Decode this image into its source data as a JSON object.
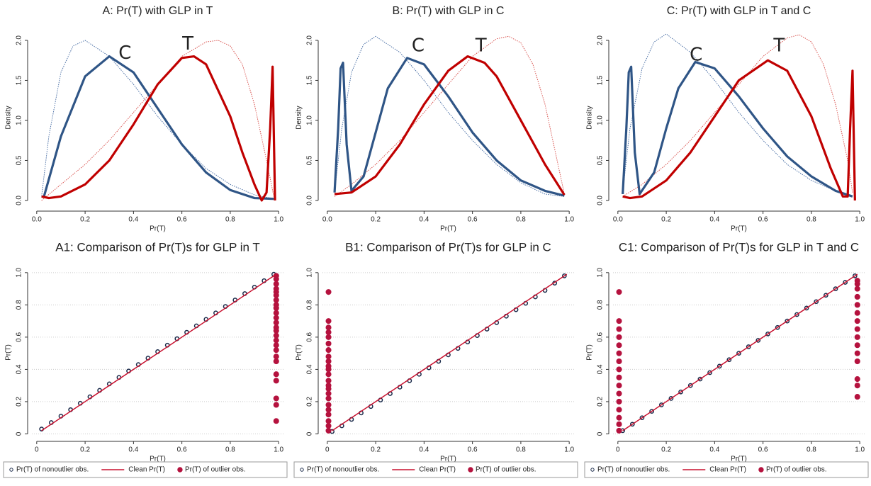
{
  "chart_data": [
    {
      "type": "line",
      "title": "A: Pr(T) with GLP in T",
      "x_label": "Pr(T)",
      "y_label": "Density",
      "xlim": [
        -0.02,
        1.02
      ],
      "ylim": [
        -0.08,
        2.15
      ],
      "xticks": [
        {
          "value": 0,
          "label": "0.0"
        },
        0.2,
        0.4,
        0.6,
        0.8,
        {
          "value": 1,
          "label": "1.0"
        }
      ],
      "yticks": [
        {
          "value": 0,
          "label": "0.0"
        },
        0.5,
        {
          "value": 1,
          "label": "1.0"
        },
        1.5,
        {
          "value": 2,
          "label": "2.0"
        }
      ],
      "annotations": [
        "C",
        "T"
      ],
      "series": [
        {
          "color": "#4a6fa5",
          "dash": true,
          "x": [
            0.02,
            0.05,
            0.1,
            0.15,
            0.2,
            0.3,
            0.4,
            0.5,
            0.6,
            0.7,
            0.8,
            0.9,
            0.98
          ],
          "values": [
            0.05,
            0.8,
            1.6,
            1.93,
            2.0,
            1.8,
            1.45,
            1.05,
            0.7,
            0.4,
            0.2,
            0.07,
            0.02
          ]
        },
        {
          "color": "#d9534f",
          "dash": true,
          "x": [
            0.02,
            0.1,
            0.2,
            0.3,
            0.4,
            0.5,
            0.6,
            0.7,
            0.75,
            0.8,
            0.85,
            0.9,
            0.95,
            0.98
          ],
          "values": [
            0.0,
            0.2,
            0.45,
            0.75,
            1.1,
            1.45,
            1.8,
            1.98,
            2.0,
            1.93,
            1.7,
            1.2,
            0.5,
            0.05
          ]
        },
        {
          "color": "#2f5586",
          "dash": false,
          "x": [
            0.03,
            0.1,
            0.2,
            0.3,
            0.4,
            0.5,
            0.6,
            0.7,
            0.8,
            0.9,
            0.98
          ],
          "values": [
            0.05,
            0.8,
            1.55,
            1.8,
            1.6,
            1.15,
            0.7,
            0.35,
            0.13,
            0.03,
            0.02
          ]
        },
        {
          "color": "#c00000",
          "dash": false,
          "x": [
            0.02,
            0.05,
            0.1,
            0.2,
            0.3,
            0.4,
            0.5,
            0.6,
            0.65,
            0.7,
            0.8,
            0.85,
            0.9,
            0.93,
            0.95,
            0.965,
            0.975,
            0.985
          ],
          "values": [
            0.05,
            0.03,
            0.05,
            0.2,
            0.5,
            0.95,
            1.45,
            1.78,
            1.8,
            1.7,
            1.05,
            0.6,
            0.2,
            0.0,
            0.1,
            0.9,
            1.67,
            0.0
          ]
        }
      ]
    },
    {
      "type": "line",
      "title": "B: Pr(T) with GLP in C",
      "x_label": "Pr(T)",
      "y_label": "Density",
      "xlim": [
        -0.02,
        1.02
      ],
      "ylim": [
        -0.08,
        2.15
      ],
      "xticks": [
        {
          "value": 0,
          "label": "0.0"
        },
        0.2,
        0.4,
        0.6,
        0.8,
        {
          "value": 1,
          "label": "1.0"
        }
      ],
      "yticks": [
        {
          "value": 0,
          "label": "0.0"
        },
        0.5,
        {
          "value": 1,
          "label": "1.0"
        },
        1.5,
        {
          "value": 2,
          "label": "2.0"
        }
      ],
      "annotations": [
        "C",
        "T"
      ],
      "series": [
        {
          "color": "#4a6fa5",
          "dash": true,
          "x": [
            0.03,
            0.06,
            0.1,
            0.15,
            0.2,
            0.3,
            0.4,
            0.5,
            0.6,
            0.7,
            0.8,
            0.9,
            0.98
          ],
          "values": [
            0.1,
            0.9,
            1.6,
            1.95,
            2.05,
            1.85,
            1.5,
            1.1,
            0.75,
            0.45,
            0.22,
            0.08,
            0.05
          ]
        },
        {
          "color": "#d9534f",
          "dash": true,
          "x": [
            0.03,
            0.1,
            0.2,
            0.3,
            0.4,
            0.5,
            0.6,
            0.7,
            0.75,
            0.8,
            0.85,
            0.9,
            0.95,
            0.98
          ],
          "values": [
            0.05,
            0.2,
            0.45,
            0.75,
            1.1,
            1.45,
            1.8,
            2.02,
            2.05,
            1.97,
            1.7,
            1.2,
            0.5,
            0.08
          ]
        },
        {
          "color": "#2f5586",
          "dash": false,
          "x": [
            0.03,
            0.045,
            0.055,
            0.065,
            0.08,
            0.1,
            0.15,
            0.2,
            0.25,
            0.33,
            0.4,
            0.5,
            0.6,
            0.7,
            0.8,
            0.9,
            0.98
          ],
          "values": [
            0.1,
            0.9,
            1.65,
            1.72,
            0.7,
            0.12,
            0.3,
            0.85,
            1.4,
            1.78,
            1.7,
            1.3,
            0.85,
            0.5,
            0.25,
            0.12,
            0.06
          ]
        },
        {
          "color": "#c00000",
          "dash": false,
          "x": [
            0.03,
            0.1,
            0.2,
            0.3,
            0.4,
            0.5,
            0.58,
            0.65,
            0.7,
            0.8,
            0.9,
            0.98
          ],
          "values": [
            0.08,
            0.1,
            0.3,
            0.7,
            1.2,
            1.62,
            1.8,
            1.72,
            1.55,
            1.0,
            0.45,
            0.07
          ]
        }
      ]
    },
    {
      "type": "line",
      "title": "C: Pr(T) with GLP in T and C",
      "x_label": "Pr(T)",
      "y_label": "Density",
      "xlim": [
        -0.02,
        1.02
      ],
      "ylim": [
        -0.08,
        2.15
      ],
      "xticks": [
        {
          "value": 0,
          "label": "0.0"
        },
        0.2,
        0.4,
        0.6,
        0.8,
        {
          "value": 1,
          "label": "1.0"
        }
      ],
      "yticks": [
        {
          "value": 0,
          "label": "0.0"
        },
        0.5,
        {
          "value": 1,
          "label": "1.0"
        },
        1.5,
        {
          "value": 2,
          "label": "2.0"
        }
      ],
      "annotations": [
        "C",
        "T"
      ],
      "series": [
        {
          "color": "#4a6fa5",
          "dash": true,
          "x": [
            0.02,
            0.05,
            0.1,
            0.15,
            0.2,
            0.3,
            0.4,
            0.5,
            0.6,
            0.7,
            0.8,
            0.9,
            0.97
          ],
          "values": [
            0.1,
            0.9,
            1.65,
            1.98,
            2.08,
            1.85,
            1.5,
            1.1,
            0.75,
            0.45,
            0.25,
            0.12,
            0.06
          ]
        },
        {
          "color": "#d9534f",
          "dash": true,
          "x": [
            0.02,
            0.1,
            0.2,
            0.3,
            0.4,
            0.5,
            0.6,
            0.7,
            0.75,
            0.8,
            0.85,
            0.9,
            0.95,
            0.97
          ],
          "values": [
            0.05,
            0.2,
            0.45,
            0.75,
            1.1,
            1.45,
            1.8,
            2.03,
            2.07,
            1.98,
            1.7,
            1.2,
            0.5,
            0.1
          ]
        },
        {
          "color": "#2f5586",
          "dash": false,
          "x": [
            0.02,
            0.035,
            0.045,
            0.055,
            0.07,
            0.09,
            0.15,
            0.2,
            0.25,
            0.32,
            0.4,
            0.5,
            0.6,
            0.7,
            0.8,
            0.9,
            0.97
          ],
          "values": [
            0.08,
            0.9,
            1.6,
            1.67,
            0.6,
            0.08,
            0.35,
            0.9,
            1.4,
            1.73,
            1.65,
            1.3,
            0.9,
            0.55,
            0.3,
            0.12,
            0.05
          ]
        },
        {
          "color": "#c00000",
          "dash": false,
          "x": [
            0.02,
            0.05,
            0.1,
            0.2,
            0.3,
            0.4,
            0.5,
            0.62,
            0.7,
            0.8,
            0.88,
            0.93,
            0.95,
            0.96,
            0.97,
            0.98
          ],
          "values": [
            0.05,
            0.03,
            0.05,
            0.25,
            0.6,
            1.05,
            1.5,
            1.75,
            1.62,
            1.05,
            0.4,
            0.05,
            0.05,
            0.9,
            1.62,
            0.0
          ]
        }
      ]
    },
    {
      "type": "scatter",
      "title": "A1: Comparison of Pr(T)s for GLP in T",
      "x_label": "Pr(T)",
      "y_label": "Pr(T)",
      "xlim": [
        -0.02,
        1.02
      ],
      "ylim": [
        -0.02,
        1.03
      ],
      "grid": true,
      "xticks": [
        0,
        0.2,
        0.4,
        0.6,
        0.8,
        {
          "value": 1,
          "label": "1.0"
        }
      ],
      "yticks": [
        0,
        0.2,
        0.4,
        0.6,
        0.8,
        {
          "value": 1,
          "label": "1.0"
        }
      ],
      "series": [
        {
          "name": "Pr(T) of nonoutlier obs.",
          "color": "#1a2a4a",
          "marker": "hollow",
          "x": [
            0.02,
            0.06,
            0.1,
            0.14,
            0.18,
            0.22,
            0.26,
            0.3,
            0.34,
            0.38,
            0.42,
            0.46,
            0.5,
            0.54,
            0.58,
            0.62,
            0.66,
            0.7,
            0.74,
            0.78,
            0.82,
            0.86,
            0.9,
            0.94,
            0.98
          ],
          "values": [
            0.03,
            0.07,
            0.11,
            0.15,
            0.19,
            0.23,
            0.27,
            0.31,
            0.35,
            0.39,
            0.43,
            0.47,
            0.51,
            0.55,
            0.59,
            0.63,
            0.67,
            0.71,
            0.75,
            0.79,
            0.83,
            0.87,
            0.91,
            0.95,
            0.99
          ]
        },
        {
          "name": "Clean Pr(T)",
          "color": "#c8102e",
          "marker": "line",
          "x": [
            0.02,
            0.99
          ],
          "values": [
            0.02,
            0.99
          ]
        },
        {
          "name": "Pr(T) of outlier obs.",
          "color": "#b5123e",
          "marker": "filled",
          "x": [
            0.99,
            0.99,
            0.99,
            0.99,
            0.99,
            0.99,
            0.99,
            0.99,
            0.99,
            0.99,
            0.99,
            0.99,
            0.99,
            0.99,
            0.99,
            0.99,
            0.99,
            0.99,
            0.99,
            0.99,
            0.99,
            0.99,
            0.99,
            0.99,
            0.99
          ],
          "values": [
            0.08,
            0.18,
            0.22,
            0.33,
            0.37,
            0.45,
            0.48,
            0.52,
            0.55,
            0.58,
            0.61,
            0.64,
            0.66,
            0.69,
            0.72,
            0.75,
            0.78,
            0.8,
            0.83,
            0.86,
            0.88,
            0.9,
            0.93,
            0.96,
            0.98
          ]
        }
      ]
    },
    {
      "type": "scatter",
      "title": "B1: Comparison of Pr(T)s for GLP in C",
      "x_label": "Pr(T)",
      "y_label": "Pr(T)",
      "xlim": [
        -0.02,
        1.02
      ],
      "ylim": [
        -0.02,
        1.03
      ],
      "grid": true,
      "xticks": [
        0,
        0.2,
        0.4,
        0.6,
        0.8,
        {
          "value": 1,
          "label": "1.0"
        }
      ],
      "yticks": [
        0,
        0.2,
        0.4,
        0.6,
        0.8,
        {
          "value": 1,
          "label": "1.0"
        }
      ],
      "series": [
        {
          "name": "Pr(T) of nonoutlier obs.",
          "color": "#1a2a4a",
          "marker": "hollow",
          "x": [
            0.02,
            0.06,
            0.1,
            0.14,
            0.18,
            0.22,
            0.26,
            0.3,
            0.34,
            0.38,
            0.42,
            0.46,
            0.5,
            0.54,
            0.58,
            0.62,
            0.66,
            0.7,
            0.74,
            0.78,
            0.82,
            0.86,
            0.9,
            0.94,
            0.98
          ],
          "values": [
            0.015,
            0.05,
            0.09,
            0.13,
            0.17,
            0.21,
            0.25,
            0.29,
            0.33,
            0.37,
            0.41,
            0.45,
            0.49,
            0.53,
            0.57,
            0.61,
            0.65,
            0.69,
            0.73,
            0.77,
            0.81,
            0.85,
            0.89,
            0.935,
            0.98
          ]
        },
        {
          "name": "Clean Pr(T)",
          "color": "#c8102e",
          "marker": "line",
          "x": [
            0.02,
            0.99
          ],
          "values": [
            0.02,
            0.99
          ]
        },
        {
          "name": "Pr(T) of outlier obs.",
          "color": "#b5123e",
          "marker": "filled",
          "x": [
            0.005,
            0.005,
            0.005,
            0.005,
            0.005,
            0.005,
            0.005,
            0.005,
            0.005,
            0.005,
            0.005,
            0.005,
            0.005,
            0.005,
            0.005,
            0.005,
            0.005,
            0.005,
            0.005,
            0.005,
            0.005,
            0.005,
            0.005
          ],
          "values": [
            0.02,
            0.05,
            0.08,
            0.12,
            0.15,
            0.18,
            0.22,
            0.25,
            0.28,
            0.3,
            0.33,
            0.37,
            0.4,
            0.42,
            0.45,
            0.48,
            0.52,
            0.56,
            0.6,
            0.63,
            0.66,
            0.7,
            0.88
          ]
        }
      ]
    },
    {
      "type": "scatter",
      "title": "C1: Comparison of Pr(T)s for GLP in T and C",
      "x_label": "Pr(T)",
      "y_label": "Pr(T)",
      "xlim": [
        -0.02,
        1.02
      ],
      "ylim": [
        -0.02,
        1.03
      ],
      "grid": true,
      "xticks": [
        0,
        0.2,
        0.4,
        0.6,
        0.8,
        {
          "value": 1,
          "label": "1.0"
        }
      ],
      "yticks": [
        0,
        0.2,
        0.4,
        0.6,
        0.8,
        {
          "value": 1,
          "label": "1.0"
        }
      ],
      "series": [
        {
          "name": "Pr(T) of nonoutlier obs.",
          "color": "#1a2a4a",
          "marker": "hollow",
          "x": [
            0.02,
            0.06,
            0.1,
            0.14,
            0.18,
            0.22,
            0.26,
            0.3,
            0.34,
            0.38,
            0.42,
            0.46,
            0.5,
            0.54,
            0.58,
            0.62,
            0.66,
            0.7,
            0.74,
            0.78,
            0.82,
            0.86,
            0.9,
            0.94,
            0.98
          ],
          "values": [
            0.02,
            0.06,
            0.1,
            0.14,
            0.18,
            0.22,
            0.26,
            0.3,
            0.34,
            0.38,
            0.42,
            0.46,
            0.5,
            0.54,
            0.58,
            0.62,
            0.66,
            0.7,
            0.74,
            0.78,
            0.82,
            0.86,
            0.9,
            0.94,
            0.98
          ]
        },
        {
          "name": "Clean Pr(T)",
          "color": "#c8102e",
          "marker": "line",
          "x": [
            0.02,
            0.99
          ],
          "values": [
            0.02,
            0.99
          ]
        },
        {
          "name": "Pr(T) of outlier obs.",
          "color": "#b5123e",
          "marker": "filled",
          "x": [
            0.005,
            0.005,
            0.005,
            0.005,
            0.005,
            0.005,
            0.005,
            0.005,
            0.005,
            0.005,
            0.005,
            0.005,
            0.005,
            0.005,
            0.005,
            0.005,
            0.99,
            0.99,
            0.99,
            0.99,
            0.99,
            0.99,
            0.99,
            0.99,
            0.99,
            0.99,
            0.99,
            0.99,
            0.99,
            0.99,
            0.99
          ],
          "values": [
            0.02,
            0.06,
            0.1,
            0.15,
            0.2,
            0.25,
            0.3,
            0.35,
            0.4,
            0.45,
            0.5,
            0.55,
            0.6,
            0.65,
            0.7,
            0.88,
            0.23,
            0.3,
            0.34,
            0.45,
            0.5,
            0.55,
            0.6,
            0.65,
            0.7,
            0.75,
            0.8,
            0.85,
            0.9,
            0.93,
            0.95
          ]
        }
      ]
    }
  ]
}
